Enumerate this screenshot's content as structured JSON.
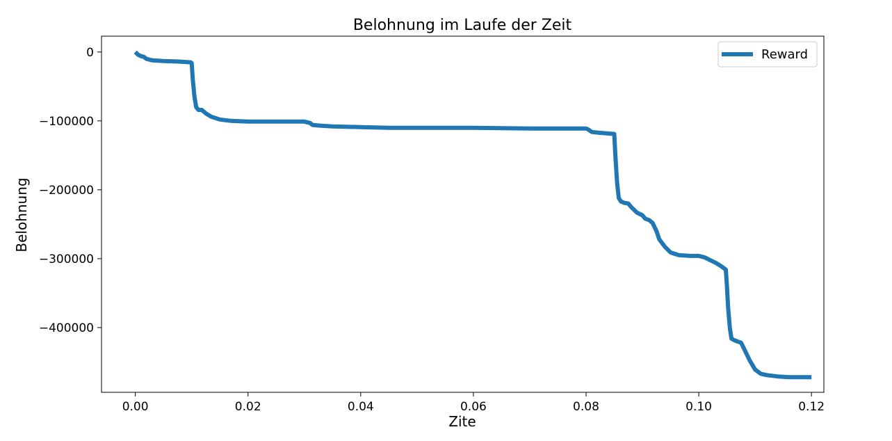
{
  "chart_data": {
    "type": "line",
    "title": "Belohnung im Laufe der Zeit",
    "xlabel": "Zite",
    "ylabel": "Belohnung",
    "xlim": [
      -0.006,
      0.1222
    ],
    "ylim": [
      -494000,
      23000
    ],
    "xticks": [
      0.0,
      0.02,
      0.04,
      0.06,
      0.08,
      0.1,
      0.12
    ],
    "xtick_labels": [
      "0.00",
      "0.02",
      "0.04",
      "0.06",
      "0.08",
      "0.10",
      "0.12"
    ],
    "yticks": [
      0,
      -100000,
      -200000,
      -300000,
      -400000
    ],
    "ytick_labels": [
      "0",
      "−100000",
      "−200000",
      "−300000",
      "−400000"
    ],
    "grid": false,
    "legend": {
      "position": "top-right",
      "entries": [
        "Reward"
      ]
    },
    "series": [
      {
        "name": "Reward",
        "color": "#1f77b4",
        "x": [
          0.0,
          0.0005,
          0.001,
          0.0015,
          0.002,
          0.003,
          0.005,
          0.008,
          0.0098,
          0.01,
          0.0102,
          0.0105,
          0.0108,
          0.0112,
          0.0118,
          0.0125,
          0.0135,
          0.015,
          0.017,
          0.02,
          0.025,
          0.03,
          0.031,
          0.0315,
          0.033,
          0.035,
          0.04,
          0.045,
          0.05,
          0.06,
          0.07,
          0.0798,
          0.08,
          0.0805,
          0.081,
          0.082,
          0.0835,
          0.085,
          0.0852,
          0.0855,
          0.0858,
          0.0862,
          0.0868,
          0.0875,
          0.088,
          0.089,
          0.09,
          0.0905,
          0.0912,
          0.0918,
          0.0925,
          0.093,
          0.094,
          0.095,
          0.0965,
          0.0985,
          0.1,
          0.101,
          0.102,
          0.103,
          0.104,
          0.1048,
          0.105,
          0.1052,
          0.1055,
          0.1058,
          0.1062,
          0.1068,
          0.1075,
          0.108,
          0.109,
          0.11,
          0.111,
          0.112,
          0.114,
          0.116,
          0.118,
          0.12
        ],
        "y": [
          0,
          -4000,
          -6000,
          -7000,
          -10000,
          -12000,
          -13000,
          -14000,
          -15000,
          -16000,
          -40000,
          -65000,
          -80000,
          -84000,
          -84000,
          -89000,
          -94000,
          -98000,
          -100000,
          -101000,
          -101000,
          -101000,
          -103000,
          -106000,
          -107000,
          -108000,
          -109000,
          -110000,
          -110000,
          -110000,
          -111000,
          -111000,
          -111000,
          -113000,
          -116000,
          -117000,
          -118000,
          -119000,
          -150000,
          -190000,
          -212000,
          -217000,
          -219000,
          -220000,
          -225000,
          -233000,
          -237000,
          -242000,
          -244000,
          -248000,
          -260000,
          -272000,
          -283000,
          -291000,
          -295000,
          -296000,
          -296000,
          -298000,
          -302000,
          -306000,
          -311000,
          -316000,
          -340000,
          -370000,
          -400000,
          -416000,
          -418000,
          -420000,
          -422000,
          -430000,
          -447000,
          -461000,
          -467000,
          -469000,
          -471000,
          -472000,
          -472000,
          -472000
        ]
      }
    ]
  }
}
